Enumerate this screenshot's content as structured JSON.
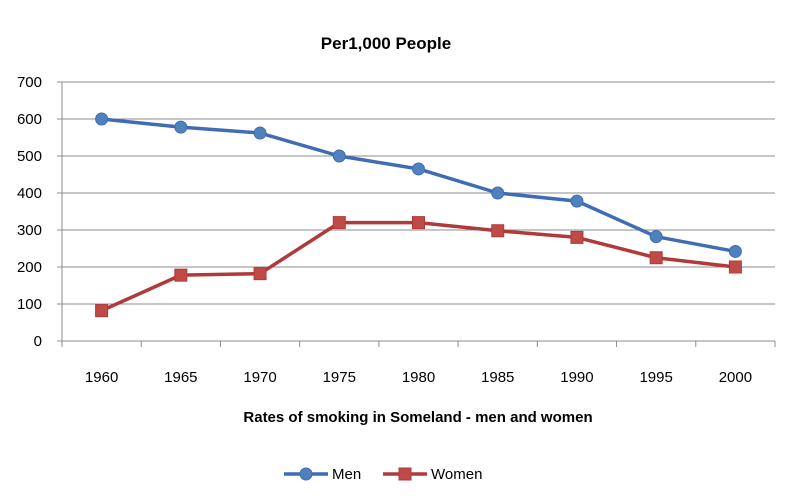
{
  "chart_data": {
    "type": "line",
    "title": "Per1,000 People",
    "xlabel": "Rates of smoking  in Someland - men and women",
    "ylabel": "",
    "categories": [
      "1960",
      "1965",
      "1970",
      "1975",
      "1980",
      "1985",
      "1990",
      "1995",
      "2000"
    ],
    "ylim": [
      0,
      700
    ],
    "yticks": [
      0,
      100,
      200,
      300,
      400,
      500,
      600,
      700
    ],
    "grid": true,
    "legend": "bottom-center",
    "series": [
      {
        "name": "Men",
        "values": [
          600,
          578,
          562,
          500,
          465,
          400,
          378,
          282,
          242
        ],
        "color": "#3f6cb4",
        "marker": "circle",
        "marker_color": "#4f81bd"
      },
      {
        "name": "Women",
        "values": [
          82,
          178,
          182,
          320,
          320,
          298,
          280,
          225,
          200
        ],
        "color": "#b03a3a",
        "marker": "square",
        "marker_color": "#be4b48"
      }
    ]
  }
}
